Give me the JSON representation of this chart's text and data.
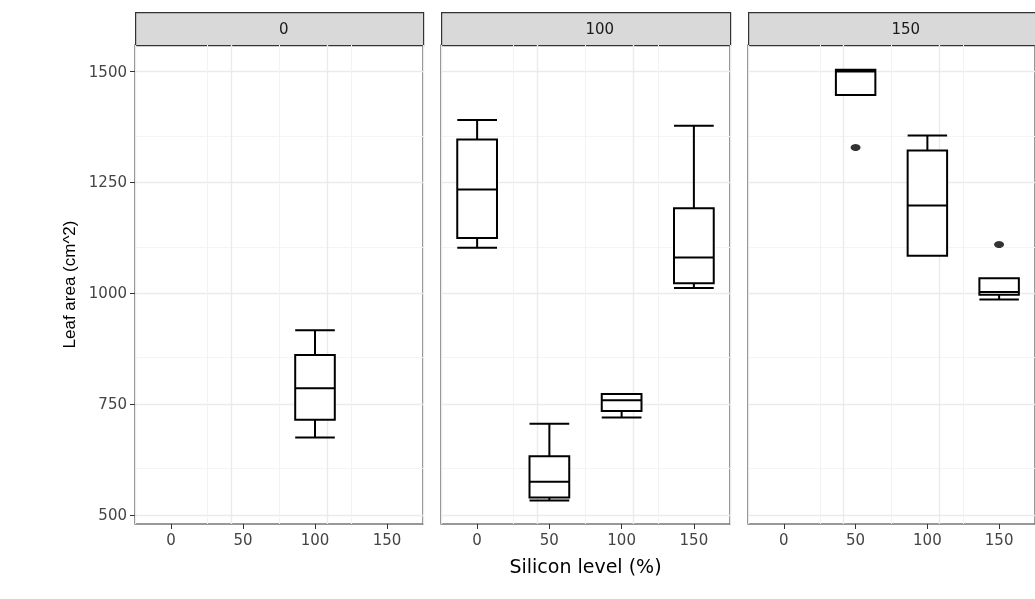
{
  "chart_data": [
    {
      "type": "box",
      "title": "0",
      "ylabel": "Leaf area (cm^2)",
      "categories": [
        "0",
        "50",
        "100",
        "150"
      ],
      "ylim": [
        480,
        1560
      ],
      "yticks": [
        500,
        750,
        1000,
        1250,
        1500
      ],
      "grid": true,
      "boxes": [
        null,
        null,
        {
          "low": 675,
          "q1": 715,
          "median": 786,
          "q3": 861,
          "high": 917
        },
        null
      ]
    },
    {
      "type": "box",
      "title": "100",
      "xlabel": "Silicon level (%)",
      "categories": [
        "0",
        "50",
        "100",
        "150"
      ],
      "ylim": [
        480,
        1560
      ],
      "yticks": [
        500,
        750,
        1000,
        1250,
        1500
      ],
      "grid": true,
      "tick_labels": "x",
      "boxes": [
        {
          "low": 1103,
          "q1": 1125,
          "median": 1234,
          "q3": 1347,
          "high": 1391
        },
        {
          "low": 533,
          "q1": 540,
          "median": 575,
          "q3": 633,
          "high": 706
        },
        {
          "low": 720,
          "q1": 735,
          "median": 759,
          "q3": 773,
          "high": 773
        },
        {
          "low": 1012,
          "q1": 1023,
          "median": 1081,
          "q3": 1192,
          "high": 1378
        }
      ]
    },
    {
      "type": "box",
      "title": "150",
      "categories": [
        "0",
        "50",
        "100",
        "150"
      ],
      "ylim": [
        480,
        1560
      ],
      "yticks": [
        500,
        750,
        1000,
        1250,
        1500
      ],
      "grid": true,
      "tick_labels": "x",
      "boxes": [
        null,
        {
          "low": 1447,
          "q1": 1447,
          "median": 1500,
          "q3": 1504,
          "high": 1504,
          "outliers": [
            1329
          ]
        },
        {
          "low": 1085,
          "q1": 1085,
          "median": 1198,
          "q3": 1322,
          "high": 1356
        },
        {
          "low": 986,
          "q1": 997,
          "median": 1003,
          "q3": 1034,
          "high": 1034,
          "outliers": [
            1110
          ]
        }
      ]
    }
  ]
}
